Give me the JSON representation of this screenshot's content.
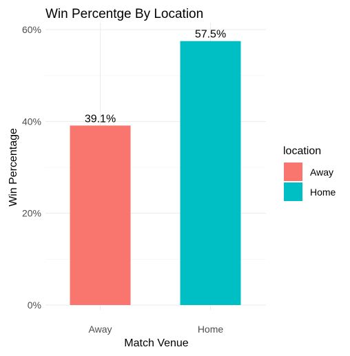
{
  "chart_data": {
    "type": "bar",
    "title": "Win Percentge By Location",
    "xlabel": "Match Venue",
    "ylabel": "Win Percentage",
    "categories": [
      "Away",
      "Home"
    ],
    "values": [
      39.1,
      57.5
    ],
    "data_labels": [
      "39.1%",
      "57.5%"
    ],
    "colors": [
      "#F8766D",
      "#00BFC4"
    ],
    "ylim": [
      0,
      60
    ],
    "yticks": [
      0,
      20,
      40,
      60
    ],
    "ytick_labels": [
      "0%",
      "20%",
      "40%",
      "60%"
    ],
    "grid": true,
    "legend": {
      "title": "location",
      "placement": "right",
      "entries": [
        "Away",
        "Home"
      ]
    }
  }
}
